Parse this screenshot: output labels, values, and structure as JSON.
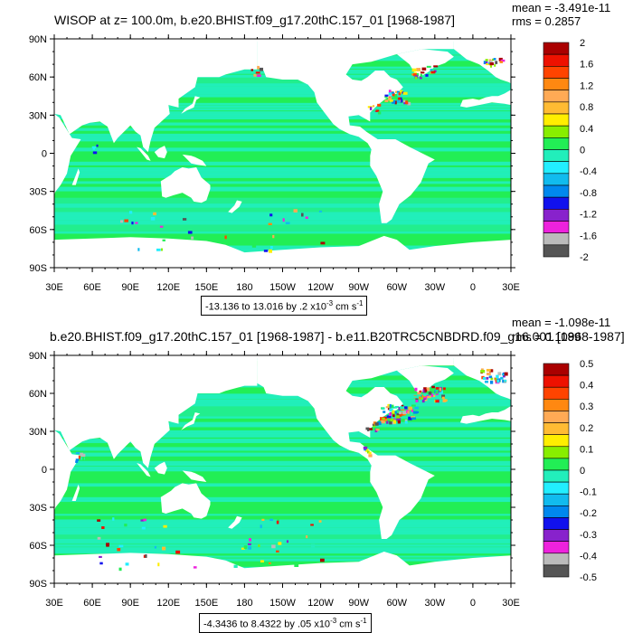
{
  "panels": [
    {
      "title": "WISOP at z= 100.0m, b.e20.BHIST.f09_g17.20thC.157_01 [1968-1987]",
      "stats": {
        "mean": "mean = -3.491e-11",
        "rms": "rms = 0.2857"
      },
      "info": {
        "range": "-13.136 to 13.016 by .2 x10",
        "exp": "-3",
        "unit": " cm s",
        "unit_exp": "-1"
      },
      "colorbar_labels": [
        "2",
        "1.6",
        "1.2",
        "0.8",
        "0.4",
        "0",
        "-0.4",
        "-0.8",
        "-1.2",
        "-1.6",
        "-2"
      ]
    },
    {
      "title": "b.e20.BHIST.f09_g17.20thC.157_01 [1968-1987] - b.e11.B20TRC5CNBDRD.f09_g16.001 [1968-1987]",
      "stats": {
        "mean": "mean = -1.098e-11",
        "rms": "rms = 0.1089"
      },
      "info": {
        "range": "-4.3436 to 8.4322 by .05 x10",
        "exp": "-3",
        "unit": " cm s",
        "unit_exp": "-1"
      },
      "colorbar_labels": [
        "0.5",
        "0.4",
        "0.3",
        "0.2",
        "0.1",
        "0",
        "-0.1",
        "-0.2",
        "-0.3",
        "-0.4",
        "-0.5"
      ]
    }
  ],
  "axes": {
    "y_ticks": [
      "90N",
      "60N",
      "30N",
      "0",
      "30S",
      "60S",
      "90S"
    ],
    "x_ticks": [
      "30E",
      "60E",
      "90E",
      "120E",
      "150E",
      "180",
      "150W",
      "120W",
      "90W",
      "60W",
      "30W",
      "0",
      "30E"
    ]
  },
  "colors": {
    "ocean_base": "#22ee55",
    "ocean_teal": "#22eebb",
    "land": "#ffffff",
    "palette": [
      "#555555",
      "#bbbbbb",
      "#ee22dd",
      "#8822cc",
      "#1111ee",
      "#0088ee",
      "#11bbee",
      "#22eeff",
      "#22eebb",
      "#22ee55",
      "#88ee00",
      "#ffee00",
      "#ffbb33",
      "#ffaa55",
      "#ff8811",
      "#ff4400",
      "#ee1100",
      "#aa0000"
    ]
  },
  "chart_data": [
    {
      "type": "heatmap",
      "title": "WISOP at z= 100.0m, b.e20.BHIST.f09_g17.20thC.157_01 [1968-1987]",
      "x_ticks": [
        "30E",
        "60E",
        "90E",
        "120E",
        "150E",
        "180",
        "150W",
        "120W",
        "90W",
        "60W",
        "30W",
        "0",
        "30E"
      ],
      "y_ticks": [
        "90N",
        "60N",
        "30N",
        "0",
        "30S",
        "60S",
        "90S"
      ],
      "xlim": [
        30,
        390
      ],
      "ylim": [
        -90,
        90
      ],
      "contour_levels": [
        -2,
        -1.6,
        -1.2,
        -0.8,
        -0.4,
        0,
        0.4,
        0.8,
        1.2,
        1.6,
        2
      ],
      "value_range": [
        -13.136,
        13.016
      ],
      "mean": -3.491e-11,
      "rms": 0.2857
    },
    {
      "type": "heatmap",
      "title": "b.e20.BHIST.f09_g17.20thC.157_01 [1968-1987] - b.e11.B20TRC5CNBDRD.f09_g16.001 [1968-1987]",
      "x_ticks": [
        "30E",
        "60E",
        "90E",
        "120E",
        "150E",
        "180",
        "150W",
        "120W",
        "90W",
        "60W",
        "30W",
        "0",
        "30E"
      ],
      "y_ticks": [
        "90N",
        "60N",
        "30N",
        "0",
        "30S",
        "60S",
        "90S"
      ],
      "xlim": [
        30,
        390
      ],
      "ylim": [
        -90,
        90
      ],
      "contour_levels": [
        -0.5,
        -0.4,
        -0.3,
        -0.2,
        -0.1,
        0,
        0.1,
        0.2,
        0.3,
        0.4,
        0.5
      ],
      "value_range": [
        -4.3436,
        8.4322
      ],
      "mean": -1.098e-11,
      "rms": 0.1089
    }
  ]
}
